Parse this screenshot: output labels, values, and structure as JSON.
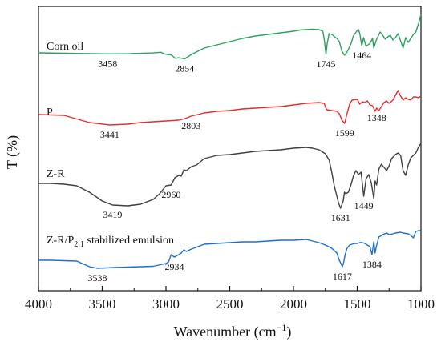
{
  "chart_data": {
    "type": "line",
    "xlabel": "Wavenumber (cm",
    "xlabel_sup": "−1",
    "xlabel_end": ")",
    "ylabel": "T (%)",
    "xlim": [
      4000,
      1000
    ],
    "x_reversed": true,
    "grid": false,
    "legend": "none",
    "xticks": [
      "4000",
      "3500",
      "3000",
      "2500",
      "2000",
      "1500",
      "1000"
    ],
    "series": [
      {
        "name": "Corn oil",
        "name_sub": "",
        "name_end": "",
        "color": "#2ca25f",
        "points": [
          [
            4000,
            66
          ],
          [
            3800,
            66.5
          ],
          [
            3600,
            67
          ],
          [
            3458,
            67.3
          ],
          [
            3300,
            67.1
          ],
          [
            3200,
            66.6
          ],
          [
            3100,
            66.1
          ],
          [
            3040,
            65.3
          ],
          [
            3010,
            67.5
          ],
          [
            2960,
            68.5
          ],
          [
            2925,
            73
          ],
          [
            2900,
            72
          ],
          [
            2854,
            73.5
          ],
          [
            2800,
            68
          ],
          [
            2700,
            60
          ],
          [
            2600,
            56
          ],
          [
            2500,
            52
          ],
          [
            2400,
            48
          ],
          [
            2300,
            45
          ],
          [
            2200,
            43
          ],
          [
            2100,
            41
          ],
          [
            2000,
            39
          ],
          [
            1950,
            37.5
          ],
          [
            1900,
            37
          ],
          [
            1850,
            36.5
          ],
          [
            1800,
            37
          ],
          [
            1770,
            39
          ],
          [
            1758,
            50
          ],
          [
            1745,
            68
          ],
          [
            1735,
            54
          ],
          [
            1720,
            42
          ],
          [
            1700,
            43
          ],
          [
            1660,
            48
          ],
          [
            1640,
            52
          ],
          [
            1620,
            64
          ],
          [
            1600,
            69
          ],
          [
            1580,
            65
          ],
          [
            1550,
            55
          ],
          [
            1530,
            45
          ],
          [
            1500,
            38
          ],
          [
            1490,
            37
          ],
          [
            1480,
            42
          ],
          [
            1464,
            57
          ],
          [
            1450,
            47
          ],
          [
            1430,
            58
          ],
          [
            1400,
            54
          ],
          [
            1380,
            48
          ],
          [
            1370,
            60
          ],
          [
            1350,
            50
          ],
          [
            1320,
            40
          ],
          [
            1300,
            44
          ],
          [
            1280,
            49
          ],
          [
            1260,
            46
          ],
          [
            1240,
            44
          ],
          [
            1220,
            50
          ],
          [
            1200,
            47
          ],
          [
            1180,
            42
          ],
          [
            1160,
            51
          ],
          [
            1140,
            60
          ],
          [
            1120,
            47
          ],
          [
            1100,
            53
          ],
          [
            1080,
            48
          ],
          [
            1060,
            43
          ],
          [
            1040,
            40
          ],
          [
            1020,
            30
          ],
          [
            1000,
            18
          ]
        ]
      },
      {
        "name": "P",
        "name_sub": "",
        "name_end": "",
        "color": "#e0302f",
        "points": [
          [
            4000,
            143
          ],
          [
            3800,
            144
          ],
          [
            3600,
            153
          ],
          [
            3441,
            156
          ],
          [
            3300,
            155
          ],
          [
            3200,
            153
          ],
          [
            3100,
            152
          ],
          [
            3000,
            151
          ],
          [
            2900,
            150
          ],
          [
            2850,
            148
          ],
          [
            2803,
            145
          ],
          [
            2750,
            143
          ],
          [
            2700,
            141
          ],
          [
            2600,
            139
          ],
          [
            2500,
            138
          ],
          [
            2400,
            136
          ],
          [
            2300,
            135
          ],
          [
            2200,
            134
          ],
          [
            2100,
            133
          ],
          [
            2000,
            131
          ],
          [
            1900,
            129
          ],
          [
            1800,
            128
          ],
          [
            1760,
            129
          ],
          [
            1740,
            137
          ],
          [
            1700,
            138
          ],
          [
            1660,
            139
          ],
          [
            1640,
            142
          ],
          [
            1620,
            150
          ],
          [
            1599,
            154
          ],
          [
            1585,
            145
          ],
          [
            1560,
            130
          ],
          [
            1540,
            125
          ],
          [
            1500,
            124
          ],
          [
            1480,
            130
          ],
          [
            1460,
            127
          ],
          [
            1440,
            128
          ],
          [
            1420,
            126
          ],
          [
            1400,
            131
          ],
          [
            1380,
            132
          ],
          [
            1360,
            139
          ],
          [
            1348,
            135
          ],
          [
            1330,
            138
          ],
          [
            1310,
            133
          ],
          [
            1290,
            128
          ],
          [
            1270,
            126
          ],
          [
            1250,
            129
          ],
          [
            1220,
            125
          ],
          [
            1200,
            119
          ],
          [
            1180,
            113
          ],
          [
            1160,
            120
          ],
          [
            1140,
            125
          ],
          [
            1120,
            122
          ],
          [
            1100,
            124
          ],
          [
            1080,
            125
          ],
          [
            1060,
            121
          ],
          [
            1040,
            121
          ],
          [
            1020,
            122
          ],
          [
            1000,
            120
          ]
        ]
      },
      {
        "name": "Z-R",
        "name_sub": "",
        "name_end": "",
        "color": "#404040",
        "points": [
          [
            4000,
            229
          ],
          [
            3900,
            229
          ],
          [
            3800,
            230
          ],
          [
            3700,
            232
          ],
          [
            3600,
            240
          ],
          [
            3500,
            251
          ],
          [
            3419,
            256
          ],
          [
            3300,
            257
          ],
          [
            3200,
            255
          ],
          [
            3100,
            249
          ],
          [
            3050,
            242
          ],
          [
            3000,
            232
          ],
          [
            2960,
            231
          ],
          [
            2930,
            222
          ],
          [
            2900,
            219
          ],
          [
            2880,
            220
          ],
          [
            2860,
            212
          ],
          [
            2840,
            213
          ],
          [
            2800,
            208
          ],
          [
            2760,
            206
          ],
          [
            2700,
            198
          ],
          [
            2600,
            194
          ],
          [
            2500,
            193
          ],
          [
            2400,
            191
          ],
          [
            2300,
            189
          ],
          [
            2200,
            188
          ],
          [
            2100,
            187
          ],
          [
            2000,
            185
          ],
          [
            1900,
            184
          ],
          [
            1850,
            185
          ],
          [
            1800,
            187
          ],
          [
            1750,
            192
          ],
          [
            1720,
            200
          ],
          [
            1700,
            215
          ],
          [
            1680,
            232
          ],
          [
            1660,
            245
          ],
          [
            1645,
            254
          ],
          [
            1631,
            260
          ],
          [
            1610,
            251
          ],
          [
            1600,
            240
          ],
          [
            1590,
            242
          ],
          [
            1570,
            240
          ],
          [
            1550,
            231
          ],
          [
            1530,
            220
          ],
          [
            1510,
            213
          ],
          [
            1490,
            218
          ],
          [
            1470,
            215
          ],
          [
            1449,
            245
          ],
          [
            1430,
            223
          ],
          [
            1410,
            218
          ],
          [
            1390,
            228
          ],
          [
            1370,
            248
          ],
          [
            1360,
            226
          ],
          [
            1348,
            231
          ],
          [
            1330,
            211
          ],
          [
            1310,
            205
          ],
          [
            1290,
            209
          ],
          [
            1270,
            213
          ],
          [
            1250,
            207
          ],
          [
            1230,
            198
          ],
          [
            1200,
            193
          ],
          [
            1180,
            191
          ],
          [
            1160,
            194
          ],
          [
            1140,
            213
          ],
          [
            1120,
            219
          ],
          [
            1100,
            206
          ],
          [
            1080,
            197
          ],
          [
            1060,
            194
          ],
          [
            1040,
            191
          ],
          [
            1020,
            184
          ],
          [
            1000,
            179
          ]
        ]
      },
      {
        "name": "Z-R/P",
        "name_sub": "2:1",
        "name_end": " stabilized emulsion",
        "color": "#1f6fd1",
        "points": [
          [
            4000,
            325
          ],
          [
            3900,
            325
          ],
          [
            3800,
            325.5
          ],
          [
            3700,
            326
          ],
          [
            3600,
            333
          ],
          [
            3538,
            335
          ],
          [
            3400,
            334
          ],
          [
            3300,
            333.5
          ],
          [
            3200,
            333
          ],
          [
            3100,
            332.5
          ],
          [
            3000,
            329
          ],
          [
            2980,
            327
          ],
          [
            2960,
            318
          ],
          [
            2934,
            321
          ],
          [
            2900,
            318
          ],
          [
            2880,
            316
          ],
          [
            2860,
            312
          ],
          [
            2840,
            314
          ],
          [
            2800,
            311
          ],
          [
            2750,
            308
          ],
          [
            2700,
            305
          ],
          [
            2600,
            304
          ],
          [
            2500,
            303
          ],
          [
            2400,
            302
          ],
          [
            2300,
            302
          ],
          [
            2200,
            301
          ],
          [
            2100,
            300
          ],
          [
            2000,
            300
          ],
          [
            1900,
            299
          ],
          [
            1850,
            301
          ],
          [
            1800,
            303
          ],
          [
            1750,
            306
          ],
          [
            1700,
            310
          ],
          [
            1660,
            316
          ],
          [
            1640,
            325
          ],
          [
            1625,
            330
          ],
          [
            1617,
            333
          ],
          [
            1608,
            329
          ],
          [
            1595,
            318
          ],
          [
            1580,
            310
          ],
          [
            1560,
            306
          ],
          [
            1540,
            305
          ],
          [
            1520,
            304
          ],
          [
            1500,
            304
          ],
          [
            1480,
            303
          ],
          [
            1460,
            303
          ],
          [
            1440,
            304
          ],
          [
            1420,
            306
          ],
          [
            1400,
            308
          ],
          [
            1384,
            318
          ],
          [
            1370,
            302
          ],
          [
            1360,
            316
          ],
          [
            1350,
            308
          ],
          [
            1330,
            296
          ],
          [
            1300,
            293
          ],
          [
            1270,
            291
          ],
          [
            1250,
            293
          ],
          [
            1220,
            292
          ],
          [
            1200,
            291
          ],
          [
            1160,
            290
          ],
          [
            1140,
            291
          ],
          [
            1100,
            292
          ],
          [
            1080,
            294
          ],
          [
            1060,
            297
          ],
          [
            1040,
            289
          ],
          [
            1020,
            288
          ],
          [
            1000,
            288
          ]
        ]
      }
    ],
    "annotations": [
      {
        "text": "3458",
        "x": 3458,
        "series": 0
      },
      {
        "text": "2854",
        "x": 2854,
        "series": 0
      },
      {
        "text": "1745",
        "x": 1745,
        "series": 0
      },
      {
        "text": "1464",
        "x": 1464,
        "series": 0
      },
      {
        "text": "3441",
        "x": 3441,
        "series": 1
      },
      {
        "text": "2803",
        "x": 2803,
        "series": 1
      },
      {
        "text": "1599",
        "x": 1599,
        "series": 1
      },
      {
        "text": "1348",
        "x": 1348,
        "series": 1
      },
      {
        "text": "3419",
        "x": 3419,
        "series": 2
      },
      {
        "text": "2960",
        "x": 2960,
        "series": 2
      },
      {
        "text": "1631",
        "x": 1631,
        "series": 2
      },
      {
        "text": "1449",
        "x": 1449,
        "series": 2
      },
      {
        "text": "3538",
        "x": 3538,
        "series": 3
      },
      {
        "text": "2934",
        "x": 2934,
        "series": 3
      },
      {
        "text": "1617",
        "x": 1617,
        "series": 3
      },
      {
        "text": "1384",
        "x": 1384,
        "series": 3
      }
    ]
  }
}
